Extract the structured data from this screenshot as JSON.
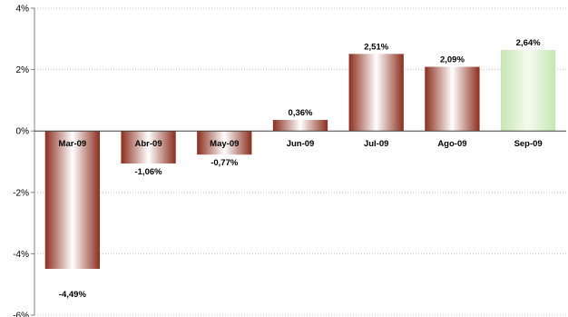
{
  "chart_data": {
    "type": "bar",
    "title": "",
    "xlabel": "",
    "ylabel": "",
    "categories": [
      "Mar-09",
      "Abr-09",
      "May-09",
      "Jun-09",
      "Jul-09",
      "Ago-09",
      "Sep-09"
    ],
    "values": [
      -4.49,
      -1.06,
      -0.77,
      0.36,
      2.51,
      2.09,
      2.64
    ],
    "value_labels": [
      "-4,49%",
      "-1,06%",
      "-0,77%",
      "0,36%",
      "2,51%",
      "2,09%",
      "2,64%"
    ],
    "ylim": [
      -6,
      4
    ],
    "yticks": [
      4,
      2,
      0,
      -2,
      -4,
      -6
    ],
    "ytick_labels": [
      "4%",
      "2%",
      "0%",
      "-2%",
      "-4%",
      "-6%"
    ],
    "grid": true,
    "legend": "none",
    "colors": {
      "bar_dark": "#8b2e1d",
      "bar_light": "#ffffff",
      "highlight_bar": "#d3ecc6",
      "gridline": "#c8c8c8",
      "axis": "#808080"
    },
    "highlight_index": 6
  }
}
